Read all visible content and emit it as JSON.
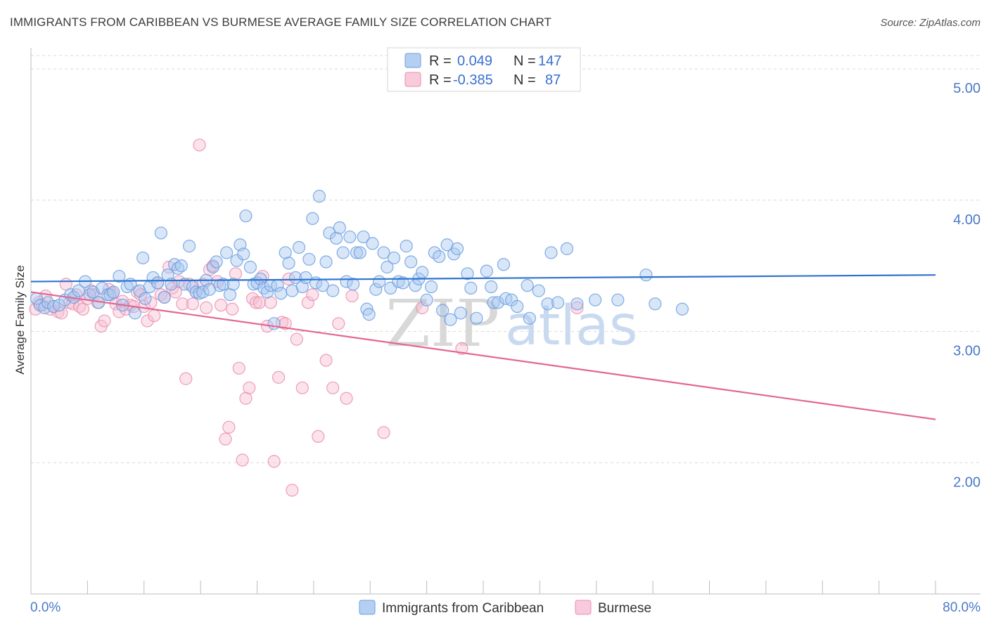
{
  "title": "IMMIGRANTS FROM CARIBBEAN VS BURMESE AVERAGE FAMILY SIZE CORRELATION CHART",
  "source": "Source: ZipAtlas.com",
  "watermark": {
    "part1": "ZIP",
    "part2": "atlas"
  },
  "legend_box": {
    "rows": [
      {
        "r_label": "R =",
        "r_value": "0.049",
        "n_label": "N =",
        "n_value": "147"
      },
      {
        "r_label": "R =",
        "r_value": "-0.385",
        "n_label": "N =",
        "n_value": "87"
      }
    ]
  },
  "bottom_legend": [
    {
      "label": "Immigrants from Caribbean"
    },
    {
      "label": "Burmese"
    }
  ],
  "colors": {
    "blue_fill": "#a9c7ef",
    "blue_stroke": "#6a9fe0",
    "blue_line": "#2f73d0",
    "pink_fill": "#f7bfd2",
    "pink_stroke": "#ea8eb0",
    "pink_line": "#e2688f",
    "axis_text": "#4a79c8",
    "grid": "#d9d9d9"
  },
  "chart_data": {
    "type": "scatter",
    "title": "IMMIGRANTS FROM CARIBBEAN VS BURMESE AVERAGE FAMILY SIZE CORRELATION CHART",
    "xlabel": "",
    "ylabel": "Average Family Size",
    "xlim": [
      0,
      80
    ],
    "ylim": [
      1.0,
      5.15
    ],
    "x_tick_labels": [
      "0.0%",
      "80.0%"
    ],
    "y_ticks": [
      2.0,
      3.0,
      4.0,
      5.0
    ],
    "y_tick_labels": [
      "2.00",
      "3.00",
      "4.00",
      "5.00"
    ],
    "grid": "horizontal dashed",
    "legend_position": "top-center",
    "series": [
      {
        "name": "Immigrants from Caribbean",
        "color": "#6a9fe0",
        "trend": {
          "x": [
            0,
            80
          ],
          "y": [
            3.38,
            3.43
          ]
        },
        "points": [
          [
            0.5,
            3.25
          ],
          [
            0.8,
            3.2
          ],
          [
            1.2,
            3.18
          ],
          [
            1.5,
            3.22
          ],
          [
            2.0,
            3.19
          ],
          [
            2.5,
            3.2
          ],
          [
            3.0,
            3.24
          ],
          [
            3.5,
            3.28
          ],
          [
            3.8,
            3.26
          ],
          [
            4.2,
            3.31
          ],
          [
            4.8,
            3.38
          ],
          [
            5.2,
            3.28
          ],
          [
            5.5,
            3.3
          ],
          [
            6.0,
            3.22
          ],
          [
            6.3,
            3.33
          ],
          [
            6.8,
            3.28
          ],
          [
            7.0,
            3.28
          ],
          [
            7.3,
            3.3
          ],
          [
            7.8,
            3.42
          ],
          [
            8.1,
            3.2
          ],
          [
            8.5,
            3.34
          ],
          [
            8.8,
            3.36
          ],
          [
            9.2,
            3.14
          ],
          [
            9.6,
            3.31
          ],
          [
            9.9,
            3.56
          ],
          [
            10.1,
            3.25
          ],
          [
            10.5,
            3.34
          ],
          [
            10.8,
            3.41
          ],
          [
            11.2,
            3.37
          ],
          [
            11.5,
            3.75
          ],
          [
            11.8,
            3.26
          ],
          [
            12.1,
            3.43
          ],
          [
            12.4,
            3.36
          ],
          [
            12.7,
            3.51
          ],
          [
            13.0,
            3.48
          ],
          [
            13.3,
            3.5
          ],
          [
            13.6,
            3.36
          ],
          [
            14.0,
            3.65
          ],
          [
            14.3,
            3.34
          ],
          [
            14.6,
            3.3
          ],
          [
            14.9,
            3.29
          ],
          [
            15.2,
            3.3
          ],
          [
            15.5,
            3.39
          ],
          [
            15.8,
            3.32
          ],
          [
            16.1,
            3.49
          ],
          [
            16.4,
            3.53
          ],
          [
            16.7,
            3.35
          ],
          [
            17.0,
            3.36
          ],
          [
            17.3,
            3.6
          ],
          [
            17.6,
            3.28
          ],
          [
            17.9,
            3.36
          ],
          [
            18.2,
            3.54
          ],
          [
            18.5,
            3.66
          ],
          [
            18.8,
            3.59
          ],
          [
            19.0,
            3.88
          ],
          [
            19.4,
            3.49
          ],
          [
            19.7,
            3.36
          ],
          [
            20.0,
            3.37
          ],
          [
            20.3,
            3.4
          ],
          [
            20.6,
            3.33
          ],
          [
            20.9,
            3.3
          ],
          [
            21.2,
            3.35
          ],
          [
            21.5,
            3.06
          ],
          [
            21.8,
            3.35
          ],
          [
            22.1,
            3.29
          ],
          [
            22.5,
            3.6
          ],
          [
            22.8,
            3.52
          ],
          [
            23.1,
            3.31
          ],
          [
            23.4,
            3.41
          ],
          [
            23.7,
            3.64
          ],
          [
            24.0,
            3.34
          ],
          [
            24.3,
            3.41
          ],
          [
            24.6,
            3.55
          ],
          [
            24.9,
            3.86
          ],
          [
            25.2,
            3.37
          ],
          [
            25.5,
            4.03
          ],
          [
            25.8,
            3.35
          ],
          [
            26.1,
            3.53
          ],
          [
            26.4,
            3.75
          ],
          [
            26.7,
            3.31
          ],
          [
            27.0,
            3.71
          ],
          [
            27.3,
            3.79
          ],
          [
            27.6,
            3.6
          ],
          [
            27.9,
            3.38
          ],
          [
            28.2,
            3.72
          ],
          [
            28.5,
            3.36
          ],
          [
            28.8,
            3.6
          ],
          [
            29.1,
            3.6
          ],
          [
            29.4,
            3.72
          ],
          [
            29.7,
            3.17
          ],
          [
            29.9,
            3.13
          ],
          [
            30.2,
            3.67
          ],
          [
            30.5,
            3.32
          ],
          [
            30.8,
            3.38
          ],
          [
            31.2,
            3.6
          ],
          [
            31.5,
            3.49
          ],
          [
            31.8,
            3.33
          ],
          [
            32.1,
            3.56
          ],
          [
            32.5,
            3.38
          ],
          [
            32.9,
            3.37
          ],
          [
            33.2,
            3.65
          ],
          [
            33.6,
            3.53
          ],
          [
            34.0,
            3.35
          ],
          [
            34.3,
            3.4
          ],
          [
            34.6,
            3.45
          ],
          [
            35.0,
            3.24
          ],
          [
            35.4,
            3.34
          ],
          [
            35.7,
            3.6
          ],
          [
            36.1,
            3.57
          ],
          [
            36.4,
            3.16
          ],
          [
            36.8,
            3.66
          ],
          [
            37.1,
            3.09
          ],
          [
            37.4,
            3.59
          ],
          [
            37.7,
            3.63
          ],
          [
            38.0,
            3.14
          ],
          [
            38.6,
            3.44
          ],
          [
            38.9,
            3.33
          ],
          [
            39.4,
            3.1
          ],
          [
            40.3,
            3.46
          ],
          [
            40.7,
            3.34
          ],
          [
            40.9,
            3.22
          ],
          [
            41.3,
            3.22
          ],
          [
            41.8,
            3.51
          ],
          [
            42.0,
            3.25
          ],
          [
            42.5,
            3.24
          ],
          [
            43.0,
            3.19
          ],
          [
            43.9,
            3.35
          ],
          [
            44.1,
            3.1
          ],
          [
            44.9,
            3.31
          ],
          [
            45.7,
            3.21
          ],
          [
            46.0,
            3.6
          ],
          [
            46.6,
            3.22
          ],
          [
            47.4,
            3.63
          ],
          [
            48.3,
            3.21
          ],
          [
            49.9,
            3.24
          ],
          [
            51.9,
            3.24
          ],
          [
            54.4,
            3.43
          ],
          [
            55.2,
            3.21
          ],
          [
            57.6,
            3.17
          ]
        ]
      },
      {
        "name": "Burmese",
        "color": "#ea8eb0",
        "trend": {
          "x": [
            0,
            80
          ],
          "y": [
            3.3,
            2.33
          ]
        },
        "points": [
          [
            0.4,
            3.17
          ],
          [
            0.7,
            3.22
          ],
          [
            1.0,
            3.2
          ],
          [
            1.3,
            3.27
          ],
          [
            1.7,
            3.17
          ],
          [
            2.0,
            3.19
          ],
          [
            2.4,
            3.15
          ],
          [
            2.7,
            3.14
          ],
          [
            3.1,
            3.36
          ],
          [
            3.4,
            3.22
          ],
          [
            3.7,
            3.21
          ],
          [
            4.0,
            3.28
          ],
          [
            4.3,
            3.19
          ],
          [
            4.6,
            3.17
          ],
          [
            5.0,
            3.25
          ],
          [
            5.3,
            3.31
          ],
          [
            5.6,
            3.28
          ],
          [
            5.9,
            3.22
          ],
          [
            6.2,
            3.04
          ],
          [
            6.5,
            3.08
          ],
          [
            6.9,
            3.32
          ],
          [
            7.2,
            3.29
          ],
          [
            7.5,
            3.21
          ],
          [
            7.8,
            3.15
          ],
          [
            8.1,
            3.23
          ],
          [
            8.4,
            3.17
          ],
          [
            8.8,
            3.2
          ],
          [
            9.1,
            3.19
          ],
          [
            9.4,
            3.3
          ],
          [
            9.7,
            3.28
          ],
          [
            10.0,
            3.19
          ],
          [
            10.3,
            3.08
          ],
          [
            10.6,
            3.22
          ],
          [
            10.9,
            3.12
          ],
          [
            11.2,
            3.37
          ],
          [
            11.5,
            3.28
          ],
          [
            11.8,
            3.26
          ],
          [
            12.2,
            3.49
          ],
          [
            12.5,
            3.33
          ],
          [
            12.8,
            3.3
          ],
          [
            13.1,
            3.38
          ],
          [
            13.4,
            3.21
          ],
          [
            13.7,
            2.64
          ],
          [
            14.0,
            3.36
          ],
          [
            14.3,
            3.21
          ],
          [
            14.6,
            3.3
          ],
          [
            14.9,
            4.42
          ],
          [
            15.2,
            3.36
          ],
          [
            15.5,
            3.18
          ],
          [
            15.8,
            3.47
          ],
          [
            16.1,
            3.5
          ],
          [
            16.5,
            3.38
          ],
          [
            16.8,
            3.2
          ],
          [
            17.2,
            2.18
          ],
          [
            17.5,
            2.27
          ],
          [
            17.8,
            3.17
          ],
          [
            18.1,
            3.44
          ],
          [
            18.4,
            2.72
          ],
          [
            18.7,
            2.02
          ],
          [
            19.0,
            2.49
          ],
          [
            19.3,
            2.57
          ],
          [
            19.6,
            3.25
          ],
          [
            19.9,
            3.22
          ],
          [
            20.2,
            3.22
          ],
          [
            20.5,
            3.42
          ],
          [
            20.9,
            3.04
          ],
          [
            21.2,
            3.22
          ],
          [
            21.5,
            2.01
          ],
          [
            21.9,
            2.65
          ],
          [
            22.2,
            3.07
          ],
          [
            22.5,
            3.06
          ],
          [
            22.8,
            3.4
          ],
          [
            23.1,
            1.79
          ],
          [
            23.5,
            2.94
          ],
          [
            24.0,
            2.57
          ],
          [
            24.5,
            3.22
          ],
          [
            24.9,
            3.28
          ],
          [
            25.4,
            2.2
          ],
          [
            26.1,
            2.78
          ],
          [
            26.7,
            2.57
          ],
          [
            27.2,
            3.06
          ],
          [
            27.9,
            2.49
          ],
          [
            28.4,
            3.27
          ],
          [
            31.2,
            2.23
          ],
          [
            34.6,
            3.18
          ],
          [
            38.1,
            2.87
          ],
          [
            48.3,
            3.18
          ]
        ]
      }
    ]
  }
}
